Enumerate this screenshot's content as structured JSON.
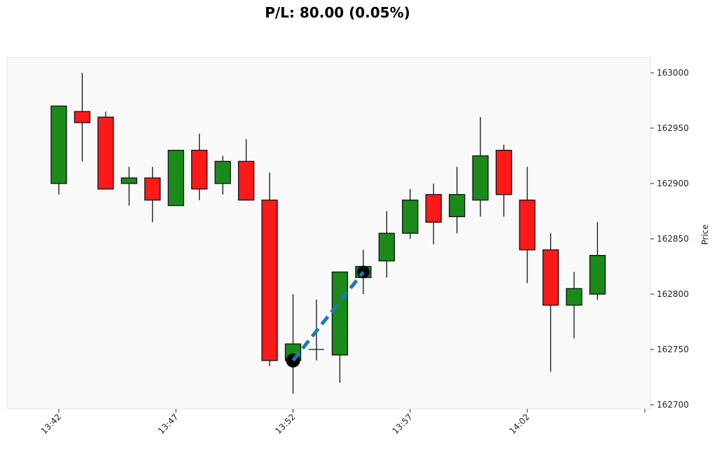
{
  "chart_data": {
    "type": "candlestick",
    "title": "P/L: 80.00 (0.05%)",
    "xlabel": "",
    "ylabel": "Price",
    "ylim": [
      162700,
      163000
    ],
    "yticks": [
      "162700",
      "162750",
      "162800",
      "162850",
      "162900",
      "162950",
      "163000"
    ],
    "xticks": [
      "13:42",
      "13:47",
      "13:52",
      "13:57",
      "14:02"
    ],
    "up_color": "#1a8a1a",
    "down_color": "#ff1a1a",
    "candles": [
      {
        "t": "13:42",
        "o": 162900,
        "h": 162970,
        "l": 162890,
        "c": 162970
      },
      {
        "t": "13:43",
        "o": 162965,
        "h": 163000,
        "l": 162920,
        "c": 162955
      },
      {
        "t": "13:44",
        "o": 162960,
        "h": 162965,
        "l": 162895,
        "c": 162895
      },
      {
        "t": "13:45",
        "o": 162900,
        "h": 162915,
        "l": 162880,
        "c": 162905
      },
      {
        "t": "13:46",
        "o": 162905,
        "h": 162915,
        "l": 162865,
        "c": 162885
      },
      {
        "t": "13:47",
        "o": 162880,
        "h": 162930,
        "l": 162880,
        "c": 162930
      },
      {
        "t": "13:48",
        "o": 162930,
        "h": 162945,
        "l": 162885,
        "c": 162895
      },
      {
        "t": "13:49",
        "o": 162900,
        "h": 162925,
        "l": 162890,
        "c": 162920
      },
      {
        "t": "13:50",
        "o": 162920,
        "h": 162940,
        "l": 162885,
        "c": 162885
      },
      {
        "t": "13:51",
        "o": 162885,
        "h": 162910,
        "l": 162735,
        "c": 162740
      },
      {
        "t": "13:52",
        "o": 162740,
        "h": 162800,
        "l": 162710,
        "c": 162755
      },
      {
        "t": "13:53",
        "o": 162750,
        "h": 162795,
        "l": 162740,
        "c": 162750
      },
      {
        "t": "13:54",
        "o": 162745,
        "h": 162820,
        "l": 162720,
        "c": 162820
      },
      {
        "t": "13:55",
        "o": 162815,
        "h": 162840,
        "l": 162800,
        "c": 162825
      },
      {
        "t": "13:56",
        "o": 162830,
        "h": 162875,
        "l": 162815,
        "c": 162855
      },
      {
        "t": "13:57",
        "o": 162855,
        "h": 162895,
        "l": 162850,
        "c": 162885
      },
      {
        "t": "13:58",
        "o": 162890,
        "h": 162900,
        "l": 162845,
        "c": 162865
      },
      {
        "t": "13:59",
        "o": 162870,
        "h": 162915,
        "l": 162855,
        "c": 162890
      },
      {
        "t": "14:00",
        "o": 162885,
        "h": 162960,
        "l": 162870,
        "c": 162925
      },
      {
        "t": "14:01",
        "o": 162930,
        "h": 162935,
        "l": 162870,
        "c": 162890
      },
      {
        "t": "14:02",
        "o": 162885,
        "h": 162915,
        "l": 162810,
        "c": 162840
      },
      {
        "t": "14:03",
        "o": 162840,
        "h": 162855,
        "l": 162730,
        "c": 162790
      },
      {
        "t": "14:04",
        "o": 162790,
        "h": 162820,
        "l": 162760,
        "c": 162805
      },
      {
        "t": "14:05",
        "o": 162800,
        "h": 162865,
        "l": 162795,
        "c": 162835
      }
    ],
    "trade": {
      "entry": {
        "index": 10,
        "price": 162740
      },
      "exit": {
        "index": 13,
        "price": 162820
      },
      "color": "#1f77b4"
    }
  }
}
